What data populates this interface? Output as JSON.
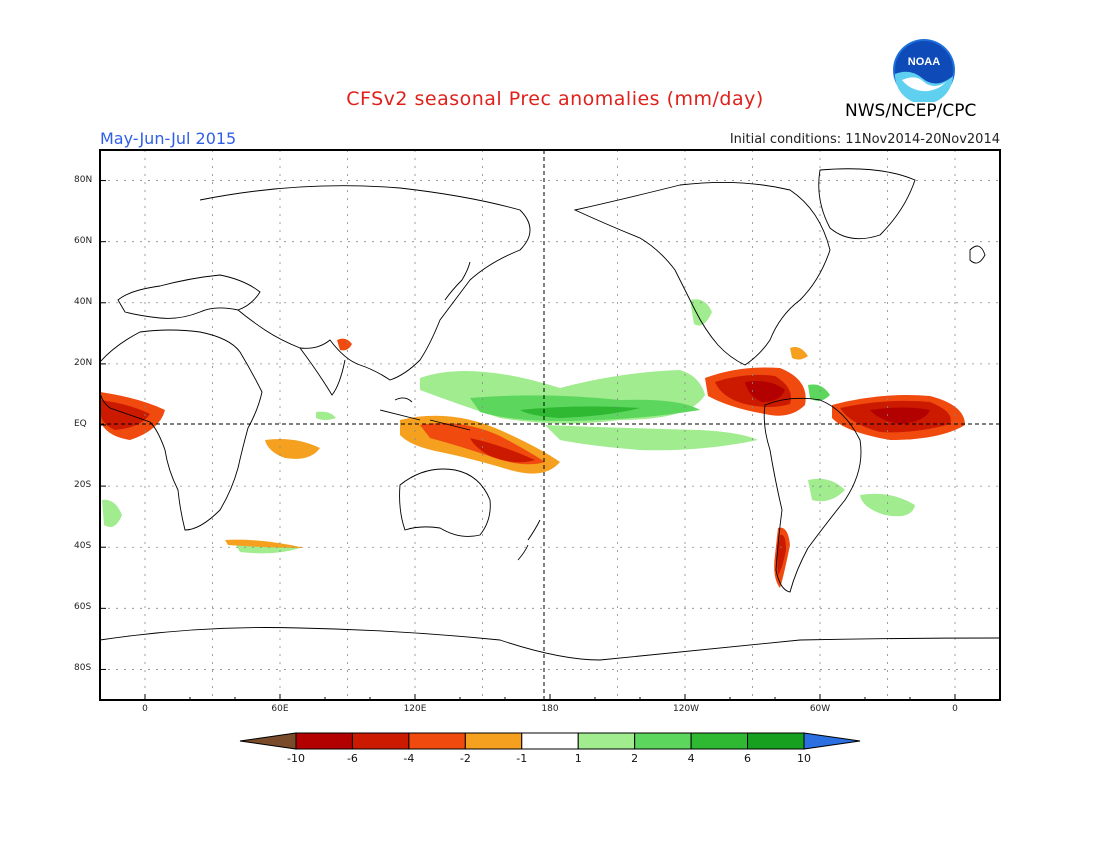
{
  "title": "CFSv2 seasonal Prec anomalies (mm/day)",
  "period": "May-Jun-Jul 2015",
  "initial_conditions": "Initial conditions: 11Nov2014-20Nov2014",
  "agency": "NWS/NCEP/CPC",
  "logo_text": "NOAA",
  "map": {
    "lat_labels": [
      "80N",
      "60N",
      "40N",
      "20N",
      "EQ",
      "20S",
      "40S",
      "60S",
      "80S"
    ],
    "lon_labels": [
      "0",
      "60E",
      "120E",
      "180",
      "120W",
      "60W",
      "0"
    ],
    "lon_range": [
      -20,
      380
    ],
    "lat_range": [
      -90,
      90
    ]
  },
  "colorbar": {
    "labels": [
      "-10",
      "-6",
      "-4",
      "-2",
      "-1",
      "1",
      "2",
      "4",
      "6",
      "10"
    ],
    "colors": [
      "#7a4b2a",
      "#b30000",
      "#cc1a00",
      "#f04a0f",
      "#f5a01e",
      "#ffffff",
      "#a0ec8f",
      "#5cd65c",
      "#2fb832",
      "#17a020",
      "#2b6fe0"
    ]
  }
}
